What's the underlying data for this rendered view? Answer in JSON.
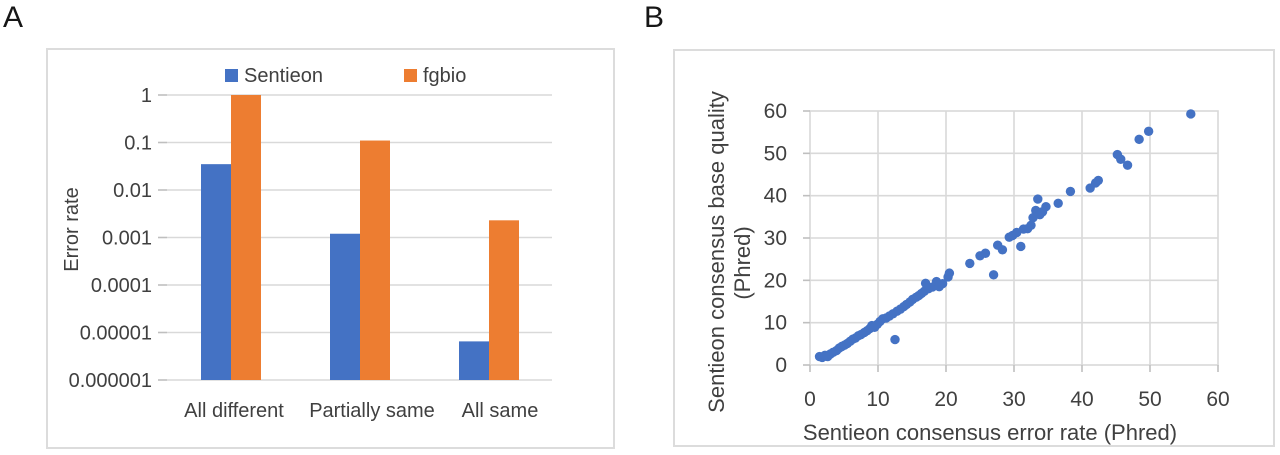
{
  "figure": {
    "panel_a_label": "A",
    "panel_b_label": "B"
  },
  "colors": {
    "sentieon_blue": "#4472C4",
    "fgbio_orange": "#ED7D31",
    "gridline": "#D9D9D9",
    "tick_mark": "#BFBFBF",
    "text": "#404040",
    "panel_border": "#DCDCDC",
    "background": "#FFFFFF"
  },
  "chart_data": [
    {
      "id": "A",
      "type": "bar",
      "title": "",
      "xlabel": "",
      "ylabel": "Error rate",
      "y_scale": "log",
      "ylim": [
        1e-06,
        1
      ],
      "grid": true,
      "legend_position": "top",
      "categories": [
        "All different",
        "Partially same",
        "All same"
      ],
      "series": [
        {
          "name": "Sentieon",
          "color": "#4472C4",
          "values": [
            0.035,
            0.0012,
            6.5e-06
          ]
        },
        {
          "name": "fgbio",
          "color": "#ED7D31",
          "values": [
            1.0,
            0.11,
            0.0023
          ]
        }
      ],
      "y_ticks": [
        1,
        0.1,
        0.01,
        0.001,
        0.0001,
        1e-05,
        1e-06
      ],
      "y_tick_labels": [
        "1",
        "0.1",
        "0.01",
        "0.001",
        "0.0001",
        "0.00001",
        "0.000001"
      ]
    },
    {
      "id": "B",
      "type": "scatter",
      "title": "",
      "xlabel": "Sentieon consensus error rate (Phred)",
      "ylabel_lines": [
        "Sentieon consensus base quality",
        "(Phred)"
      ],
      "xlim": [
        0,
        60
      ],
      "ylim": [
        0,
        60
      ],
      "x_ticks": [
        0,
        10,
        20,
        30,
        40,
        50,
        60
      ],
      "y_ticks": [
        0,
        10,
        20,
        30,
        40,
        50,
        60
      ],
      "grid": true,
      "marker_color": "#4472C4",
      "points": [
        [
          1.4,
          2.0
        ],
        [
          1.8,
          1.8
        ],
        [
          2.2,
          2.3
        ],
        [
          2.6,
          2.0
        ],
        [
          3.0,
          2.6
        ],
        [
          3.4,
          3.0
        ],
        [
          3.9,
          3.4
        ],
        [
          4.3,
          4.0
        ],
        [
          4.7,
          4.4
        ],
        [
          5.1,
          4.7
        ],
        [
          5.5,
          5.1
        ],
        [
          5.9,
          5.6
        ],
        [
          6.3,
          6.1
        ],
        [
          6.7,
          6.4
        ],
        [
          7.1,
          6.9
        ],
        [
          7.5,
          7.2
        ],
        [
          8.0,
          7.7
        ],
        [
          8.4,
          8.1
        ],
        [
          8.8,
          8.6
        ],
        [
          9.1,
          9.3
        ],
        [
          9.5,
          8.9
        ],
        [
          9.9,
          9.6
        ],
        [
          10.3,
          10.3
        ],
        [
          10.7,
          10.9
        ],
        [
          11.2,
          11.1
        ],
        [
          11.7,
          11.6
        ],
        [
          12.2,
          12.1
        ],
        [
          12.5,
          6.0
        ],
        [
          12.8,
          12.7
        ],
        [
          13.3,
          13.2
        ],
        [
          13.8,
          13.8
        ],
        [
          14.2,
          14.3
        ],
        [
          14.7,
          14.9
        ],
        [
          15.1,
          15.5
        ],
        [
          15.6,
          16.0
        ],
        [
          16.0,
          16.4
        ],
        [
          16.4,
          16.9
        ],
        [
          16.8,
          17.4
        ],
        [
          17.0,
          19.3
        ],
        [
          17.4,
          18.0
        ],
        [
          18.0,
          18.4
        ],
        [
          18.6,
          19.7
        ],
        [
          19.0,
          18.5
        ],
        [
          19.5,
          19.2
        ],
        [
          20.3,
          20.8
        ],
        [
          20.5,
          21.7
        ],
        [
          23.5,
          24.0
        ],
        [
          25.0,
          25.8
        ],
        [
          25.8,
          26.4
        ],
        [
          27.0,
          21.3
        ],
        [
          27.6,
          28.3
        ],
        [
          28.3,
          27.2
        ],
        [
          29.3,
          30.2
        ],
        [
          29.8,
          30.6
        ],
        [
          30.4,
          31.3
        ],
        [
          31.0,
          28.0
        ],
        [
          31.4,
          32.1
        ],
        [
          32.0,
          32.2
        ],
        [
          32.5,
          33.0
        ],
        [
          32.8,
          34.8
        ],
        [
          33.2,
          36.5
        ],
        [
          33.5,
          39.2
        ],
        [
          33.8,
          35.5
        ],
        [
          34.2,
          36.2
        ],
        [
          34.7,
          37.4
        ],
        [
          36.5,
          38.2
        ],
        [
          38.3,
          41.0
        ],
        [
          41.2,
          41.8
        ],
        [
          42.0,
          43.0
        ],
        [
          42.4,
          43.6
        ],
        [
          45.2,
          49.7
        ],
        [
          45.7,
          48.6
        ],
        [
          46.7,
          47.2
        ],
        [
          48.4,
          53.3
        ],
        [
          49.8,
          55.2
        ],
        [
          56.0,
          59.3
        ]
      ]
    }
  ]
}
